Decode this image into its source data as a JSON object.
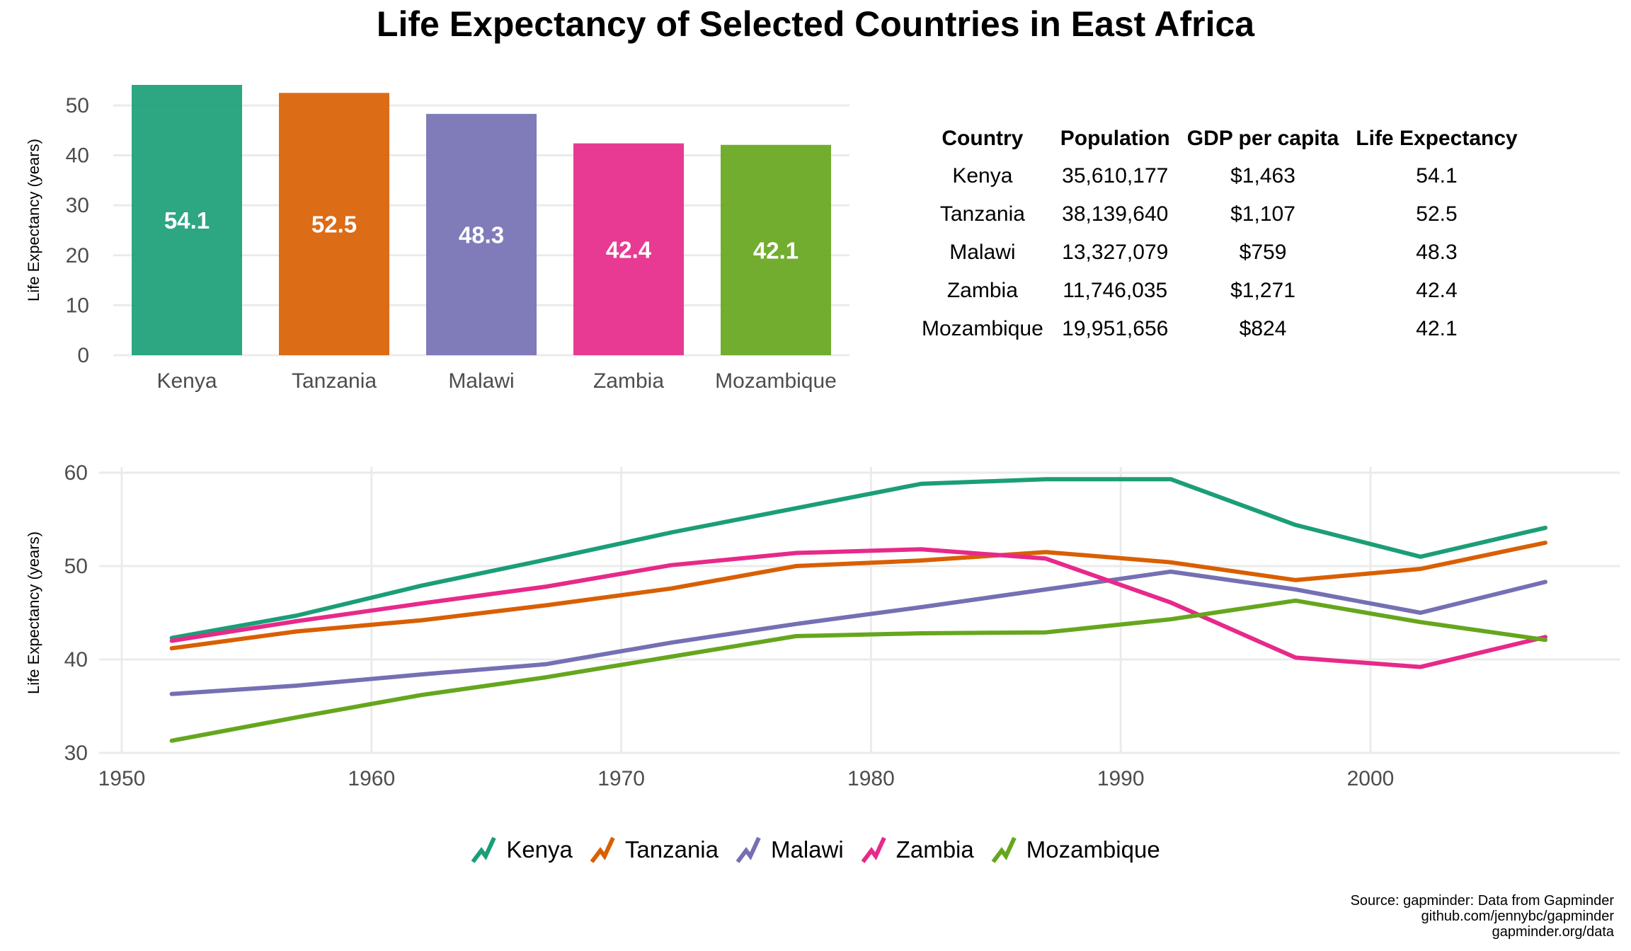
{
  "title": "Life Expectancy of Selected Countries in East Africa",
  "colors": {
    "Kenya": "#1b9e77",
    "Tanzania": "#d95f02",
    "Malawi": "#7570b3",
    "Zambia": "#e7298a",
    "Mozambique": "#66a61e",
    "grid": "#ebebeb"
  },
  "chart_data": [
    {
      "type": "bar",
      "categories": [
        "Kenya",
        "Tanzania",
        "Malawi",
        "Zambia",
        "Mozambique"
      ],
      "values": [
        54.1,
        52.5,
        48.3,
        42.4,
        42.1
      ],
      "data_labels": [
        "54.1",
        "52.5",
        "48.3",
        "42.4",
        "42.1"
      ],
      "ylabel": "Life Expectancy (years)",
      "yticks": [
        0,
        10,
        20,
        30,
        40,
        50
      ],
      "ylim": [
        0,
        54.1
      ],
      "grid": true
    },
    {
      "type": "table",
      "columns": [
        "Country",
        "Population",
        "GDP per capita",
        "Life Expectancy"
      ],
      "rows": [
        [
          "Kenya",
          "35,610,177",
          "$1,463",
          "54.1"
        ],
        [
          "Tanzania",
          "38,139,640",
          "$1,107",
          "52.5"
        ],
        [
          "Malawi",
          "13,327,079",
          "$759",
          "48.3"
        ],
        [
          "Zambia",
          "11,746,035",
          "$1,271",
          "42.4"
        ],
        [
          "Mozambique",
          "19,951,656",
          "$824",
          "42.1"
        ]
      ]
    },
    {
      "type": "line",
      "x": [
        1952,
        1957,
        1962,
        1967,
        1972,
        1977,
        1982,
        1987,
        1992,
        1997,
        2002,
        2007
      ],
      "series": [
        {
          "name": "Kenya",
          "values": [
            42.3,
            44.7,
            47.9,
            50.7,
            53.6,
            56.2,
            58.8,
            59.3,
            59.3,
            54.4,
            51.0,
            54.1
          ]
        },
        {
          "name": "Tanzania",
          "values": [
            41.2,
            43.0,
            44.2,
            45.8,
            47.6,
            50.0,
            50.6,
            51.5,
            50.4,
            48.5,
            49.7,
            52.5
          ]
        },
        {
          "name": "Malawi",
          "values": [
            36.3,
            37.2,
            38.4,
            39.5,
            41.8,
            43.8,
            45.6,
            47.5,
            49.4,
            47.5,
            45.0,
            48.3
          ]
        },
        {
          "name": "Zambia",
          "values": [
            42.0,
            44.1,
            46.0,
            47.8,
            50.1,
            51.4,
            51.8,
            50.8,
            46.1,
            40.2,
            39.2,
            42.4
          ]
        },
        {
          "name": "Mozambique",
          "values": [
            31.3,
            33.8,
            36.2,
            38.1,
            40.3,
            42.5,
            42.8,
            42.9,
            44.3,
            46.3,
            44.0,
            42.1
          ]
        }
      ],
      "xticks": [
        1950,
        1960,
        1970,
        1980,
        1990,
        2000
      ],
      "yticks": [
        30,
        40,
        50,
        60
      ],
      "xlim": [
        1950,
        2010
      ],
      "ylim": [
        30,
        60
      ],
      "ylabel": "Life Expectancy (years)",
      "legend_position": "bottom",
      "grid": true
    }
  ],
  "source": {
    "line1": "Source: gapminder: Data from Gapminder",
    "line2": "github.com/jennybc/gapminder",
    "line3": "gapminder.org/data"
  }
}
